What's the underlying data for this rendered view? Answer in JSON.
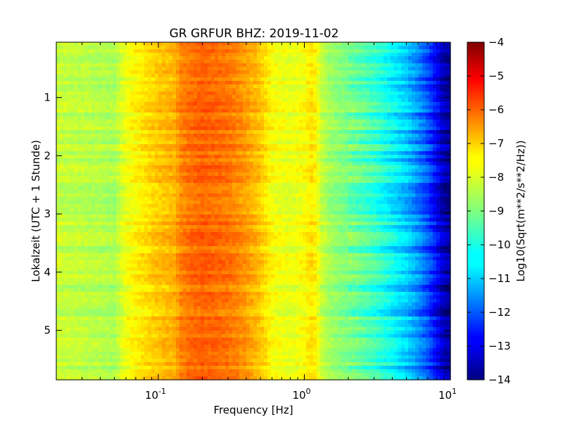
{
  "chart_data": {
    "type": "heatmap",
    "title": "GR GRFUR BHZ: 2019-11-02",
    "xlabel": "Frequency [Hz]",
    "ylabel": "Lokalzeit (UTC + 1 Stunde)",
    "x_scale": "log",
    "xlim": [
      0.02,
      10
    ],
    "x_ticks": [
      {
        "value": 0.1,
        "base": "10",
        "exp": "-1"
      },
      {
        "value": 1,
        "base": "10",
        "exp": "0"
      },
      {
        "value": 10,
        "base": "10",
        "exp": "1"
      }
    ],
    "ylim": [
      5.85,
      0.05
    ],
    "y_ticks": [
      {
        "value": 1,
        "label": "1"
      },
      {
        "value": 2,
        "label": "2"
      },
      {
        "value": 3,
        "label": "3"
      },
      {
        "value": 4,
        "label": "4"
      },
      {
        "value": 5,
        "label": "5"
      }
    ],
    "colorbar": {
      "label": "Log10(Sqrt(m**2/s**2/Hz))",
      "range": [
        -14,
        -4
      ],
      "colormap": "jet",
      "ticks": [
        "-4",
        "-5",
        "-6",
        "-7",
        "-8",
        "-9",
        "-10",
        "-11",
        "-12",
        "-13",
        "-14"
      ]
    },
    "spectrum_profile": {
      "frequency_hz": [
        0.02,
        0.03,
        0.04,
        0.05,
        0.06,
        0.08,
        0.1,
        0.13,
        0.14,
        0.16,
        0.2,
        0.25,
        0.3,
        0.35,
        0.4,
        0.5,
        0.55,
        0.6,
        0.7,
        0.8,
        1.0,
        1.1,
        1.2,
        1.3,
        1.5,
        2.0,
        2.5,
        3.0,
        4.0,
        5.0,
        6.0,
        7.0,
        8.0,
        9.0,
        10.0
      ],
      "log10_amplitude": [
        -8.3,
        -8.4,
        -8.5,
        -8.6,
        -7.9,
        -7.5,
        -7.2,
        -7.0,
        -6.6,
        -6.4,
        -6.2,
        -6.3,
        -6.4,
        -6.6,
        -6.8,
        -7.2,
        -7.5,
        -7.8,
        -7.9,
        -8.0,
        -7.8,
        -7.5,
        -7.7,
        -8.3,
        -8.7,
        -9.1,
        -9.4,
        -9.7,
        -10.3,
        -10.8,
        -11.4,
        -12.0,
        -12.8,
        -13.5,
        -13.8
      ]
    }
  }
}
